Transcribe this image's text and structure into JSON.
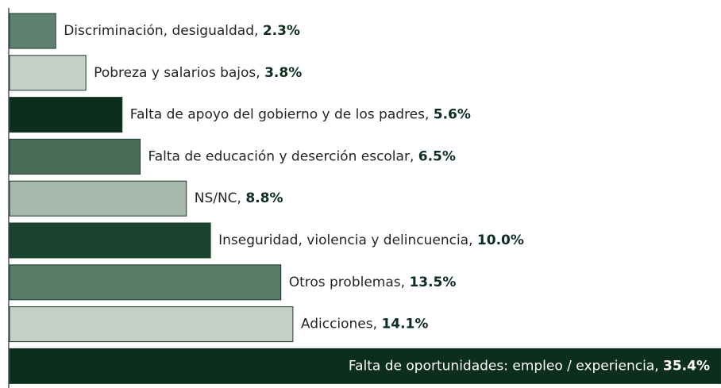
{
  "chart_data": {
    "type": "bar",
    "orientation": "horizontal",
    "categories": [
      "Discriminación, desigualdad,",
      "Pobreza y salarios bajos,",
      "Falta de apoyo del gobierno y de los padres,",
      "Falta de educación y deserción escolar,",
      "NS/NC,",
      "Inseguridad, violencia y delincuencia,",
      "Otros problemas,",
      "Adicciones,",
      "Falta de oportunidades: empleo / experiencia,"
    ],
    "values": [
      2.3,
      3.8,
      5.6,
      6.5,
      8.8,
      10.0,
      13.5,
      14.1,
      35.4
    ],
    "value_labels": [
      "2.3%",
      "3.8%",
      "5.6%",
      "6.5%",
      "8.8%",
      "10.0%",
      "13.5%",
      "14.1%",
      "35.4%"
    ],
    "colors": [
      "#5f8270",
      "#c2d0c5",
      "#0b2e1d",
      "#4a6b58",
      "#a5b8ab",
      "#1b4430",
      "#5a7b67",
      "#c2d0c5",
      "#0b2e1d"
    ]
  }
}
